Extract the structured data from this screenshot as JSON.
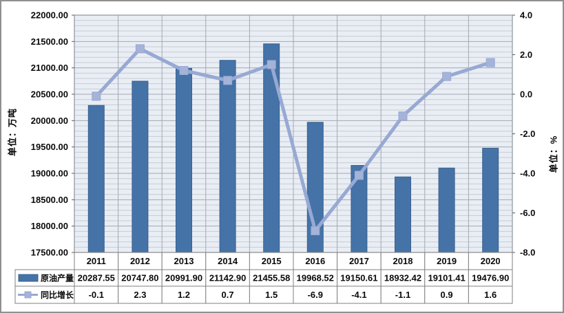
{
  "window": {
    "background": "#ffffff",
    "border_color": "#909090"
  },
  "chart_data": {
    "type": "combo-bar-line",
    "categories": [
      "2011",
      "2012",
      "2013",
      "2014",
      "2015",
      "2016",
      "2017",
      "2018",
      "2019",
      "2020"
    ],
    "series": [
      {
        "name": "原油产量",
        "type": "bar",
        "axis": "left",
        "values": [
          20287.55,
          20747.8,
          20991.9,
          21142.9,
          21455.58,
          19968.52,
          19150.61,
          18932.42,
          19101.41,
          19476.9
        ],
        "labels": [
          "20287.55",
          "20747.80",
          "20991.90",
          "21142.90",
          "21455.58",
          "19968.52",
          "19150.61",
          "18932.42",
          "19101.41",
          "19476.90"
        ],
        "color": "#4573a7",
        "border_color": "#3a618e"
      },
      {
        "name": "同比增长",
        "type": "line",
        "axis": "right",
        "values": [
          -0.1,
          2.3,
          1.2,
          0.7,
          1.5,
          -6.9,
          -4.1,
          -1.1,
          0.9,
          1.6
        ],
        "labels": [
          "-0.1",
          "2.3",
          "1.2",
          "0.7",
          "1.5",
          "-6.9",
          "-4.1",
          "-1.1",
          "0.9",
          "1.6"
        ],
        "color": "#97a9d3",
        "marker_color": "#a6b3d9"
      }
    ],
    "left_axis": {
      "title": "单位：万吨",
      "min": 17500,
      "max": 22000,
      "major_step": 500,
      "minor_step": 100,
      "decimals": 2,
      "tick_labels": [
        "22000.00",
        "21500.00",
        "21000.00",
        "20500.00",
        "20000.00",
        "19500.00",
        "19000.00",
        "18500.00",
        "18000.00",
        "17500.00"
      ]
    },
    "right_axis": {
      "title": "单位：%",
      "min": -8,
      "max": 4,
      "major_step": 2,
      "decimals": 1,
      "tick_labels": [
        "4.0",
        "2.0",
        "0.0",
        "-2.0",
        "-4.0",
        "-6.0",
        "-8.0"
      ]
    },
    "plot": {
      "bg": "#e9edf4",
      "grid_minor": "#c8ccd5",
      "grid_major": "#a3a8b1",
      "border": "#8d939d",
      "tick_color": "#595959"
    },
    "table": {
      "border": "#7f7f7f",
      "bg": "#ffffff"
    },
    "grid": true,
    "legend_position": "table-left"
  }
}
